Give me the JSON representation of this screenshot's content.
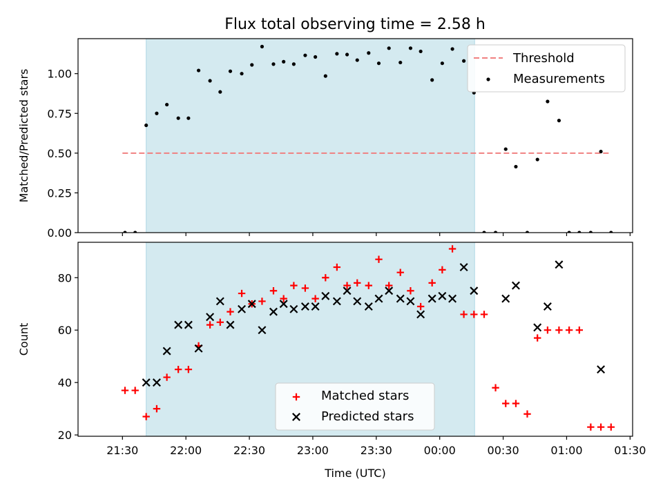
{
  "title": "Flux total observing time = 2.58 h",
  "chart_data": [
    {
      "type": "scatter",
      "panel": "top",
      "title": "Flux total observing time = 2.58 h",
      "ylabel": "Matched/Predicted stars",
      "xlabel": "",
      "x_unit": "hours since 21:30 UTC",
      "xlim": [
        -0.35,
        4.02
      ],
      "ylim": [
        0,
        1.22
      ],
      "yticks": [
        0.0,
        0.25,
        0.5,
        0.75,
        1.0
      ],
      "ytick_labels": [
        "0.00",
        "0.25",
        "0.50",
        "0.75",
        "1.00"
      ],
      "shaded_interval": [
        0.187,
        2.775
      ],
      "shade_color": "#d4eaf0",
      "threshold": {
        "name": "Threshold",
        "value": 0.5,
        "x": [
          0.0,
          3.85
        ],
        "color": "#f08080",
        "style": "dashed"
      },
      "series": [
        {
          "name": "Measurements",
          "color": "#000000",
          "marker": "dot",
          "x": [
            0.02,
            0.1,
            0.187,
            0.27,
            0.35,
            0.44,
            0.52,
            0.6,
            0.69,
            0.77,
            0.85,
            0.94,
            1.02,
            1.1,
            1.19,
            1.27,
            1.35,
            1.44,
            1.52,
            1.6,
            1.69,
            1.77,
            1.85,
            1.94,
            2.02,
            2.1,
            2.19,
            2.27,
            2.35,
            2.44,
            2.52,
            2.6,
            2.69,
            2.77,
            2.85,
            2.94,
            3.02,
            3.1,
            3.19,
            3.27,
            3.35,
            3.44,
            3.52,
            3.6,
            3.69,
            3.77,
            3.85
          ],
          "y": [
            0.0,
            0.0,
            0.675,
            0.75,
            0.805,
            0.72,
            0.72,
            1.02,
            0.955,
            0.885,
            1.015,
            1.0,
            1.055,
            1.17,
            1.06,
            1.075,
            1.06,
            1.115,
            1.105,
            0.985,
            1.125,
            1.12,
            1.085,
            1.13,
            1.065,
            1.16,
            1.07,
            1.16,
            1.14,
            0.96,
            1.065,
            1.155,
            1.08,
            0.88,
            0.0,
            0.0,
            0.525,
            0.415,
            0.0,
            0.46,
            0.825,
            0.705,
            0.0,
            0.0,
            0.0,
            0.51,
            0.0
          ]
        }
      ],
      "legend": {
        "position": "upper-right",
        "entries": [
          "Threshold",
          "Measurements"
        ]
      }
    },
    {
      "type": "scatter",
      "panel": "bottom",
      "title": "",
      "ylabel": "Count",
      "xlabel": "Time (UTC)",
      "x_unit": "hours since 21:30 UTC",
      "xlim": [
        -0.35,
        4.02
      ],
      "ylim": [
        19.5,
        93.5
      ],
      "yticks": [
        20,
        40,
        60,
        80
      ],
      "ytick_labels": [
        "20",
        "40",
        "60",
        "80"
      ],
      "xticks": [
        0,
        0.5,
        1.0,
        1.5,
        2.0,
        2.5,
        3.0,
        3.5,
        4.0
      ],
      "xtick_labels": [
        "21:30",
        "22:00",
        "22:30",
        "23:00",
        "23:30",
        "00:00",
        "00:30",
        "01:00",
        "01:30"
      ],
      "shaded_interval": [
        0.187,
        2.775
      ],
      "shade_color": "#d4eaf0",
      "series": [
        {
          "name": "Matched stars",
          "color": "#ff0000",
          "marker": "plus",
          "x": [
            0.02,
            0.1,
            0.187,
            0.27,
            0.35,
            0.44,
            0.52,
            0.6,
            0.69,
            0.77,
            0.85,
            0.94,
            1.02,
            1.1,
            1.19,
            1.27,
            1.35,
            1.44,
            1.52,
            1.6,
            1.69,
            1.77,
            1.85,
            1.94,
            2.02,
            2.1,
            2.19,
            2.27,
            2.35,
            2.44,
            2.52,
            2.6,
            2.69,
            2.77,
            2.85,
            2.94,
            3.02,
            3.1,
            3.19,
            3.27,
            3.35,
            3.44,
            3.52,
            3.6,
            3.69,
            3.77,
            3.85
          ],
          "y": [
            37,
            37,
            27,
            30,
            42,
            45,
            45,
            54,
            62,
            63,
            67,
            74,
            70,
            71,
            75,
            72,
            77,
            76,
            72,
            80,
            84,
            77,
            78,
            77,
            87,
            77,
            82,
            75,
            69,
            78,
            83,
            91,
            66,
            66,
            66,
            38,
            32,
            32,
            28,
            57,
            60,
            60,
            60,
            60,
            23,
            23,
            23
          ]
        },
        {
          "name": "Predicted stars",
          "color": "#000000",
          "marker": "x",
          "x": [
            0.187,
            0.27,
            0.35,
            0.44,
            0.52,
            0.6,
            0.69,
            0.77,
            0.85,
            0.94,
            1.02,
            1.1,
            1.19,
            1.27,
            1.35,
            1.44,
            1.52,
            1.6,
            1.69,
            1.77,
            1.85,
            1.94,
            2.02,
            2.1,
            2.19,
            2.27,
            2.35,
            2.44,
            2.52,
            2.6,
            2.69,
            2.77,
            3.02,
            3.1,
            3.27,
            3.35,
            3.44,
            3.77
          ],
          "y": [
            40,
            40,
            52,
            62,
            62,
            53,
            65,
            71,
            62,
            68,
            70,
            60,
            67,
            70,
            68,
            69,
            69,
            73,
            71,
            75,
            71,
            69,
            72,
            75,
            72,
            71,
            66,
            72,
            73,
            72,
            84,
            75,
            72,
            77,
            61,
            69,
            85,
            45
          ]
        }
      ],
      "legend": {
        "position": "lower-center",
        "entries": [
          "Matched stars",
          "Predicted stars"
        ]
      }
    }
  ]
}
